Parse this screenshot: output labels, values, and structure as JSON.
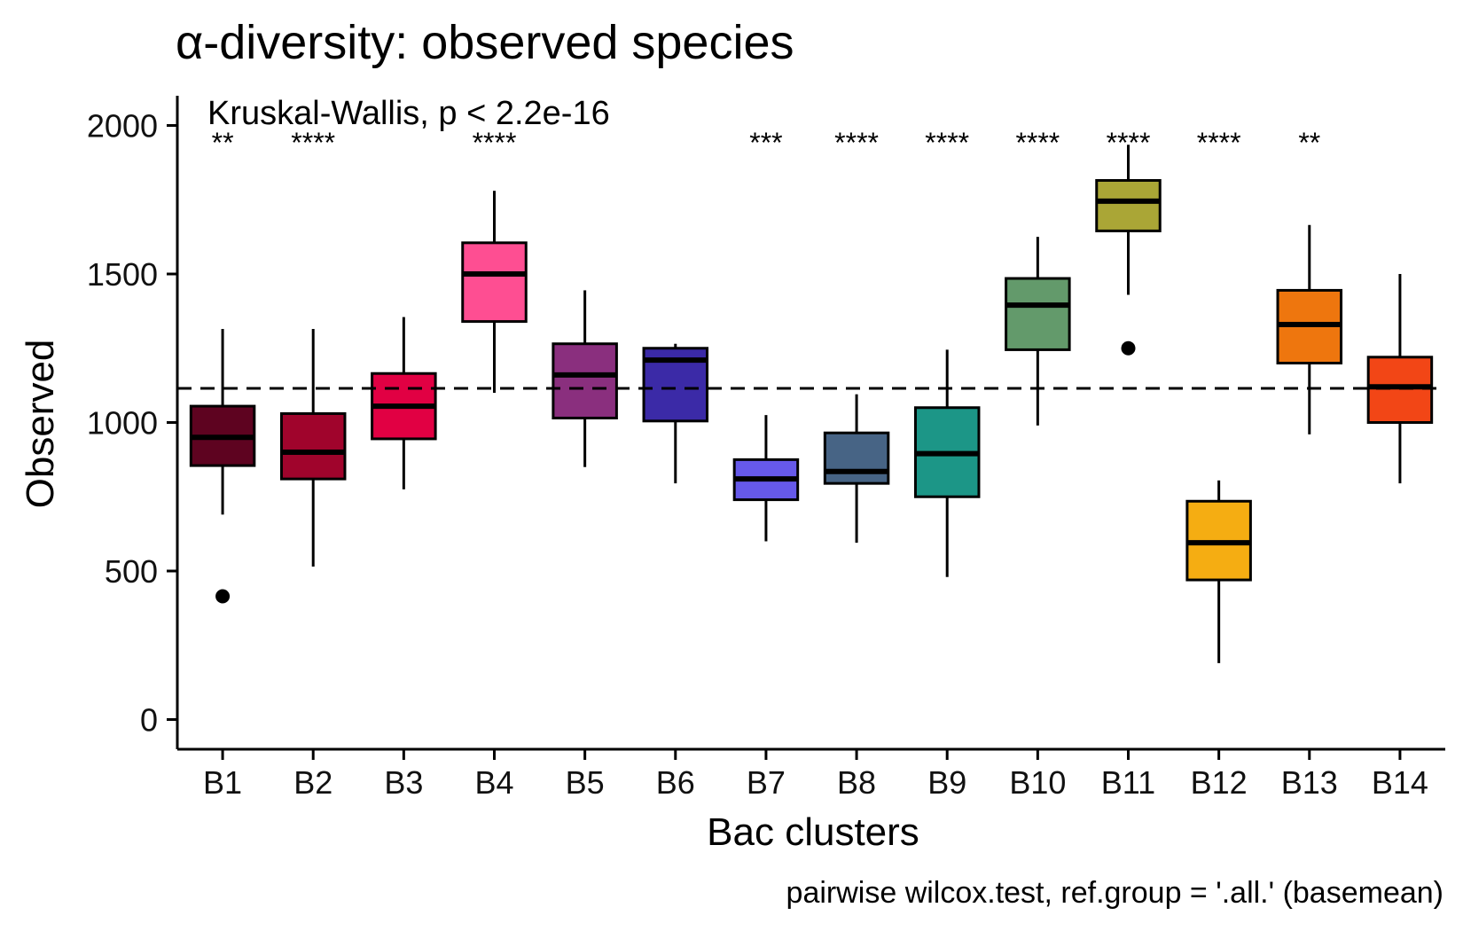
{
  "chart_data": {
    "type": "boxplot",
    "title": "α-diversity: observed species",
    "xlabel": "Bac clusters",
    "ylabel": "Observed",
    "ylim": [
      -100,
      2100
    ],
    "yticks": [
      0,
      500,
      1000,
      1500,
      2000
    ],
    "grid": false,
    "annotation": "Kruskal-Wallis, p < 2.2e-16",
    "caption": "pairwise wilcox.test, ref.group = '.all.' (basemean)",
    "reference_line": 1115,
    "categories": [
      "B1",
      "B2",
      "B3",
      "B4",
      "B5",
      "B6",
      "B7",
      "B8",
      "B9",
      "B10",
      "B11",
      "B12",
      "B13",
      "B14"
    ],
    "boxes": [
      {
        "name": "B1",
        "min": 690,
        "q1": 855,
        "median": 950,
        "q3": 1055,
        "max": 1315,
        "outliers": [
          415
        ],
        "color": "#5e0320",
        "sig": "**"
      },
      {
        "name": "B2",
        "min": 515,
        "q1": 810,
        "median": 900,
        "q3": 1030,
        "max": 1315,
        "outliers": [],
        "color": "#a0042c",
        "sig": "****"
      },
      {
        "name": "B3",
        "min": 775,
        "q1": 945,
        "median": 1055,
        "q3": 1165,
        "max": 1355,
        "outliers": [],
        "color": "#e10043",
        "sig": ""
      },
      {
        "name": "B4",
        "min": 1100,
        "q1": 1340,
        "median": 1500,
        "q3": 1605,
        "max": 1780,
        "outliers": [],
        "color": "#fe4e92",
        "sig": "****"
      },
      {
        "name": "B5",
        "min": 850,
        "q1": 1015,
        "median": 1160,
        "q3": 1265,
        "max": 1445,
        "outliers": [],
        "color": "#8a2f7e",
        "sig": ""
      },
      {
        "name": "B6",
        "min": 795,
        "q1": 1005,
        "median": 1210,
        "q3": 1250,
        "max": 1265,
        "outliers": [],
        "color": "#3b2aa7",
        "sig": ""
      },
      {
        "name": "B7",
        "min": 600,
        "q1": 740,
        "median": 810,
        "q3": 875,
        "max": 1025,
        "outliers": [],
        "color": "#6659ea",
        "sig": "***"
      },
      {
        "name": "B8",
        "min": 595,
        "q1": 795,
        "median": 835,
        "q3": 965,
        "max": 1095,
        "outliers": [],
        "color": "#476485",
        "sig": "****"
      },
      {
        "name": "B9",
        "min": 480,
        "q1": 750,
        "median": 895,
        "q3": 1050,
        "max": 1245,
        "outliers": [],
        "color": "#1c9687",
        "sig": "****"
      },
      {
        "name": "B10",
        "min": 990,
        "q1": 1245,
        "median": 1395,
        "q3": 1485,
        "max": 1625,
        "outliers": [],
        "color": "#639a6b",
        "sig": "****"
      },
      {
        "name": "B11",
        "min": 1430,
        "q1": 1645,
        "median": 1745,
        "q3": 1815,
        "max": 1935,
        "outliers": [
          1250
        ],
        "color": "#aaa636",
        "sig": "****"
      },
      {
        "name": "B12",
        "min": 190,
        "q1": 470,
        "median": 595,
        "q3": 735,
        "max": 805,
        "outliers": [],
        "color": "#f5ad12",
        "sig": "****"
      },
      {
        "name": "B13",
        "min": 960,
        "q1": 1200,
        "median": 1330,
        "q3": 1445,
        "max": 1665,
        "outliers": [],
        "color": "#ee760e",
        "sig": "**"
      },
      {
        "name": "B14",
        "min": 795,
        "q1": 1000,
        "median": 1120,
        "q3": 1220,
        "max": 1500,
        "outliers": [],
        "color": "#f24616",
        "sig": ""
      }
    ]
  }
}
